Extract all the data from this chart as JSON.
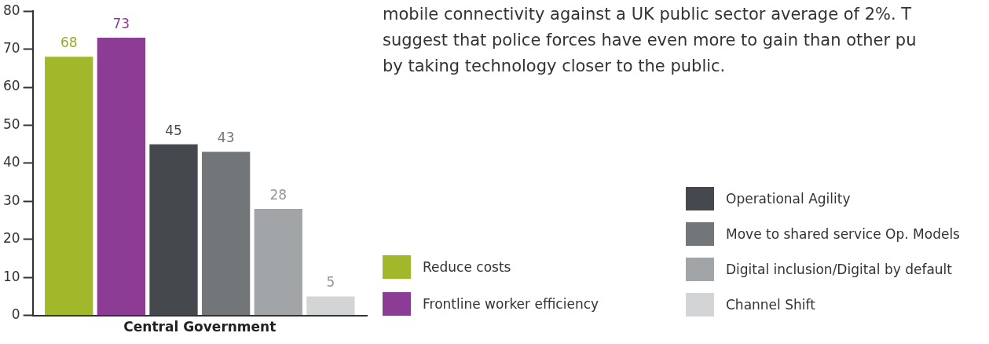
{
  "chart_data": {
    "type": "bar",
    "categories": [
      "Central Government"
    ],
    "series": [
      {
        "name": "Reduce costs",
        "color": "#a3b72a",
        "values": [
          68
        ]
      },
      {
        "name": "Frontline worker efficiency",
        "color": "#8c3c94",
        "values": [
          73
        ]
      },
      {
        "name": "Operational Agility",
        "color": "#45494d",
        "values": [
          45
        ]
      },
      {
        "name": "Move to shared service Op. Models",
        "color": "#737679",
        "values": [
          43
        ]
      },
      {
        "name": "Digital inclusion/Digital by default",
        "color": "#a2a5a7",
        "values": [
          28
        ]
      },
      {
        "name": "Channel Shift",
        "color": "#d3d4d5",
        "values": [
          5
        ]
      }
    ],
    "ylim": [
      0,
      80
    ],
    "yticks": [
      0,
      10,
      20,
      30,
      40,
      50,
      60,
      70,
      80
    ],
    "grid": false,
    "legend": "bottom right",
    "data_labels": true,
    "annotations": [
      "mobile connectivity against a UK public sector average of 2%. T",
      "suggest that police forces have even more to gain than other pu",
      "by taking technology closer to the public."
    ]
  }
}
